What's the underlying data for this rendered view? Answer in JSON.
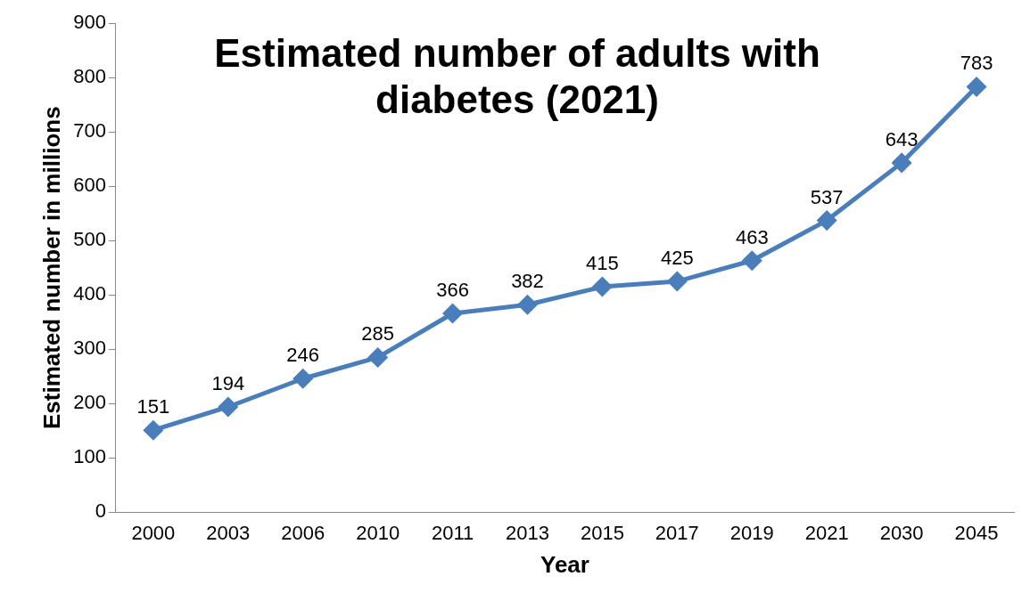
{
  "chart_data": {
    "type": "line",
    "title": "Estimated number of adults with diabetes (2021)",
    "xlabel": "Year",
    "ylabel": "Estimated number in millions",
    "categories": [
      "2000",
      "2003",
      "2006",
      "2010",
      "2011",
      "2013",
      "2015",
      "2017",
      "2019",
      "2021",
      "2030",
      "2045"
    ],
    "series": [
      {
        "color": "#4a7ebb",
        "values": [
          151,
          194,
          246,
          285,
          366,
          382,
          415,
          425,
          463,
          537,
          643,
          783
        ]
      }
    ],
    "ylim": [
      0,
      900
    ],
    "yticks": [
      0,
      100,
      200,
      300,
      400,
      500,
      600,
      700,
      800,
      900
    ],
    "grid": false,
    "legend": false,
    "marker": "diamond",
    "line_style": "solid",
    "data_labels": true
  }
}
